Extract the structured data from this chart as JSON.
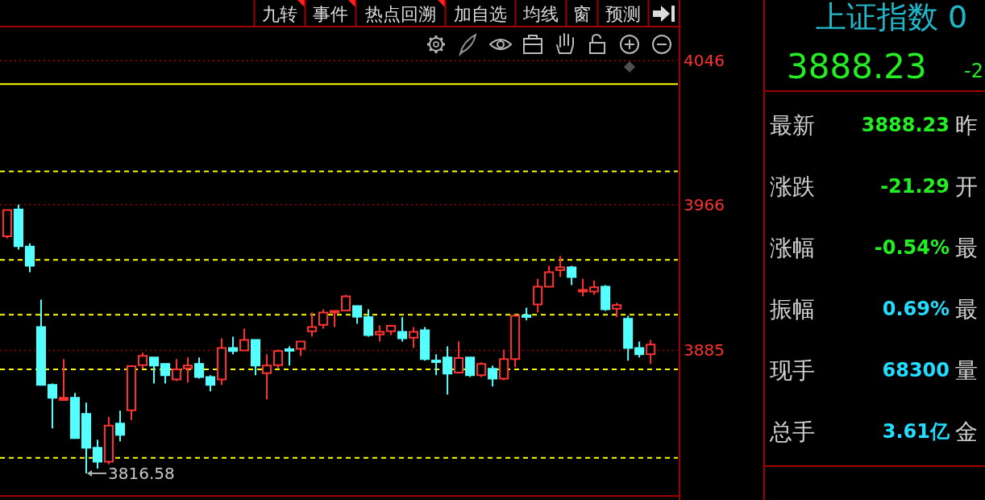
{
  "chart_data": [
    {
      "type": "candlestick",
      "categories": [
        null,
        null,
        null,
        null,
        null,
        null,
        null,
        null,
        null,
        null,
        null,
        null,
        null,
        null,
        null,
        null,
        null,
        null,
        null,
        null,
        null,
        null,
        null,
        null,
        null,
        null,
        null,
        null,
        null,
        null,
        null,
        null,
        null,
        null,
        null,
        null,
        null,
        null,
        null,
        null,
        null,
        null,
        null,
        null,
        null,
        null,
        null,
        null,
        null,
        null,
        null,
        null,
        null,
        null,
        null,
        null,
        null,
        null
      ],
      "ohlc": [
        [
          3948.4,
          3963.0,
          3947.3,
          3963.0
        ],
        [
          3963.3,
          3966.0,
          3941.0,
          3942.9
        ],
        [
          3942.7,
          3944.5,
          3928.4,
          3932.0
        ],
        [
          3898.0,
          3913.2,
          3865.8,
          3865.8
        ],
        [
          3865.8,
          3866.6,
          3841.6,
          3858.6
        ],
        [
          3857.4,
          3880.1,
          3857.1,
          3858.6
        ],
        [
          3858.6,
          3861.3,
          3836.2,
          3836.2
        ],
        [
          3849.6,
          3855.9,
          3816.58,
          3830.8
        ],
        [
          3830.8,
          3835.3,
          3819.3,
          3823.1
        ],
        [
          3823.1,
          3847.8,
          3821.6,
          3843.1
        ],
        [
          3844.3,
          3851.4,
          3834.4,
          3838.0
        ],
        [
          3851.7,
          3876.2,
          3846.1,
          3876.2
        ],
        [
          3876.8,
          3883.7,
          3874.7,
          3881.9
        ],
        [
          3881.0,
          3881.0,
          3866.6,
          3876.5
        ],
        [
          3877.4,
          3877.4,
          3866.6,
          3871.1
        ],
        [
          3868.8,
          3880.1,
          3867.9,
          3874.4
        ],
        [
          3875.0,
          3881.0,
          3867.0,
          3876.5
        ],
        [
          3877.4,
          3881.0,
          3869.3,
          3870.2
        ],
        [
          3870.2,
          3871.1,
          3862.2,
          3865.8
        ],
        [
          3868.8,
          3891.7,
          3865.8,
          3886.3
        ],
        [
          3886.3,
          3892.6,
          3882.8,
          3884.6
        ],
        [
          3884.9,
          3897.1,
          3884.9,
          3890.8
        ],
        [
          3890.8,
          3890.8,
          3871.1,
          3876.5
        ],
        [
          3872.3,
          3882.8,
          3857.7,
          3876.5
        ],
        [
          3876.8,
          3885.4,
          3874.7,
          3884.6
        ],
        [
          3885.4,
          3887.2,
          3876.5,
          3884.9
        ],
        [
          3885.8,
          3889.9,
          3881.9,
          3889.9
        ],
        [
          3895.6,
          3906.0,
          3892.6,
          3898.0
        ],
        [
          3899.2,
          3907.8,
          3897.1,
          3906.0
        ],
        [
          3906.3,
          3906.6,
          3898.0,
          3906.6
        ],
        [
          3907.2,
          3915.9,
          3907.2,
          3915.0
        ],
        [
          3909.6,
          3909.6,
          3899.8,
          3903.7
        ],
        [
          3903.4,
          3907.8,
          3892.6,
          3893.5
        ],
        [
          3893.8,
          3898.9,
          3889.9,
          3895.3
        ],
        [
          3895.6,
          3898.6,
          3893.5,
          3898.6
        ],
        [
          3895.3,
          3903.4,
          3889.9,
          3891.7
        ],
        [
          3892.0,
          3898.0,
          3886.3,
          3895.3
        ],
        [
          3896.2,
          3898.0,
          3879.2,
          3880.1
        ],
        [
          3879.2,
          3882.8,
          3871.1,
          3878.6
        ],
        [
          3881.0,
          3887.2,
          3860.4,
          3872.0
        ],
        [
          3872.6,
          3889.9,
          3872.0,
          3880.7
        ],
        [
          3881.0,
          3881.0,
          3870.2,
          3871.1
        ],
        [
          3871.1,
          3878.3,
          3870.2,
          3877.4
        ],
        [
          3874.7,
          3876.5,
          3864.9,
          3869.3
        ],
        [
          3869.3,
          3885.4,
          3868.4,
          3880.1
        ],
        [
          3880.1,
          3904.2,
          3875.6,
          3904.2
        ],
        [
          3904.1,
          3908.7,
          3901.6,
          3903.8
        ],
        [
          3910.5,
          3924.8,
          3906.0,
          3920.4
        ],
        [
          3920.4,
          3932.0,
          3920.4,
          3928.4
        ],
        [
          3929.6,
          3937.4,
          3925.7,
          3931.1
        ],
        [
          3931.1,
          3932.0,
          3921.3,
          3925.7
        ],
        [
          3917.7,
          3924.8,
          3915.0,
          3918.6
        ],
        [
          3917.7,
          3923.9,
          3915.9,
          3920.0
        ],
        [
          3920.4,
          3921.3,
          3906.9,
          3907.8
        ],
        [
          3908.1,
          3911.4,
          3903.4,
          3910.2
        ],
        [
          3902.5,
          3904.2,
          3879.2,
          3886.3
        ],
        [
          3886.3,
          3889.9,
          3881.0,
          3882.8
        ],
        [
          3882.8,
          3890.8,
          3877.4,
          3888.2
        ]
      ],
      "colors": [
        "#ff3232",
        "#54ffff",
        "#54ffff",
        "#54ffff",
        "#54ffff",
        "#ff3232",
        "#54ffff",
        "#54ffff",
        "#54ffff",
        "#ff3232",
        "#54ffff",
        "#ff3232",
        "#ff3232",
        "#54ffff",
        "#54ffff",
        "#ff3232",
        "#ff3232",
        "#54ffff",
        "#54ffff",
        "#ff3232",
        "#54ffff",
        "#ff3232",
        "#54ffff",
        "#ff3232",
        "#ff3232",
        "#54ffff",
        "#ff3232",
        "#ff3232",
        "#ff3232",
        "#ff3232",
        "#ff3232",
        "#54ffff",
        "#54ffff",
        "#ff3232",
        "#ff3232",
        "#54ffff",
        "#ff3232",
        "#54ffff",
        "#54ffff",
        "#54ffff",
        "#ff3232",
        "#54ffff",
        "#ff3232",
        "#54ffff",
        "#ff3232",
        "#ff3232",
        "#54ffff",
        "#ff3232",
        "#ff3232",
        "#ff3232",
        "#54ffff",
        "#ff3232",
        "#ff3232",
        "#54ffff",
        "#ff3232",
        "#54ffff",
        "#54ffff",
        "#ff3232"
      ],
      "ylim": [
        3804,
        4065
      ],
      "yticks": [
        3885,
        3966,
        4046
      ],
      "grid": "y",
      "tick_labels": "y",
      "ref_lines": [
        {
          "axis": "y",
          "value": 4033,
          "color": "#ffff00",
          "line_style": "solid"
        },
        {
          "axis": "y",
          "value": 3984.5,
          "color": "#ffff00",
          "line_style": "dashed"
        },
        {
          "axis": "y",
          "value": 3935.3,
          "color": "#ffff00",
          "line_style": "dashed"
        },
        {
          "axis": "y",
          "value": 3904.8,
          "color": "#ffff00",
          "line_style": "dashed"
        },
        {
          "axis": "y",
          "value": 3874.4,
          "color": "#ffff00",
          "line_style": "dashed"
        },
        {
          "axis": "y",
          "value": 3825.2,
          "color": "#ffff00",
          "line_style": "dashed"
        }
      ],
      "annotations": [
        "3816.58",
        "九转",
        "事件",
        "热点回溯",
        "加自选",
        "均线",
        "窗",
        "预测"
      ]
    },
    {
      "type": "other",
      "title": "上证指数 0",
      "annotations": [
        "3888.23",
        "-2",
        "最新",
        "3888.23",
        "昨",
        "涨跌",
        "-21.29",
        "开",
        "涨幅",
        "-0.54%",
        "最",
        "振幅",
        "0.69%",
        "最",
        "现手",
        "68300",
        "量",
        "总手",
        "3.61亿",
        "金"
      ]
    }
  ]
}
